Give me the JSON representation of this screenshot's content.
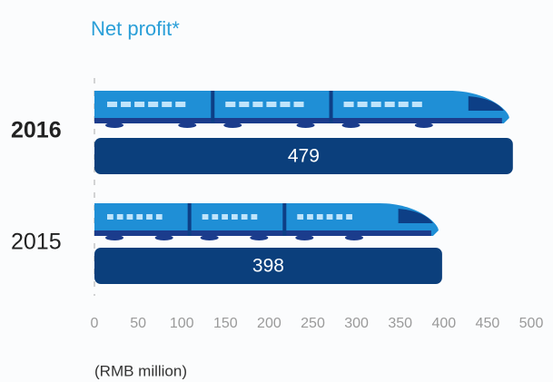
{
  "chart_data": {
    "type": "bar",
    "orientation": "horizontal",
    "title": "Net profit*",
    "categories": [
      "2016",
      "2015"
    ],
    "values": [
      479,
      398
    ],
    "color": "#0b3f7c",
    "xlabel": "(RMB million)",
    "xlim": [
      0,
      500
    ],
    "xticks": [
      0,
      50,
      100,
      150,
      200,
      250,
      300,
      350,
      400,
      450,
      500
    ]
  }
}
